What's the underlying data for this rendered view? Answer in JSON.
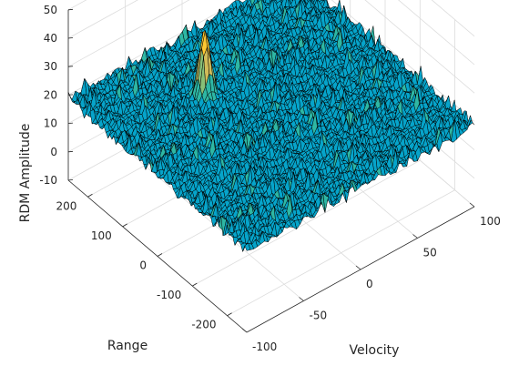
{
  "chart_data": {
    "type": "surface",
    "title": "",
    "xlabel": "Velocity",
    "ylabel": "Range",
    "zlabel": "RDM Amplitude",
    "xlim": [
      -100,
      100
    ],
    "ylim": [
      -256,
      256
    ],
    "zlim": [
      -10,
      50
    ],
    "x_ticks": [
      "-100",
      "-50",
      "0",
      "50",
      "100"
    ],
    "y_ticks": [
      "200",
      "100",
      "0",
      "-100",
      "-200"
    ],
    "z_ticks": [
      "50",
      "40",
      "30",
      "20",
      "10",
      "0",
      "-10"
    ],
    "grid": true,
    "colormap": "parula",
    "surface": {
      "noise_floor_mean": 18,
      "noise_min": -2,
      "peak": {
        "velocity": -25,
        "range": 110,
        "amplitude": 42
      }
    }
  }
}
